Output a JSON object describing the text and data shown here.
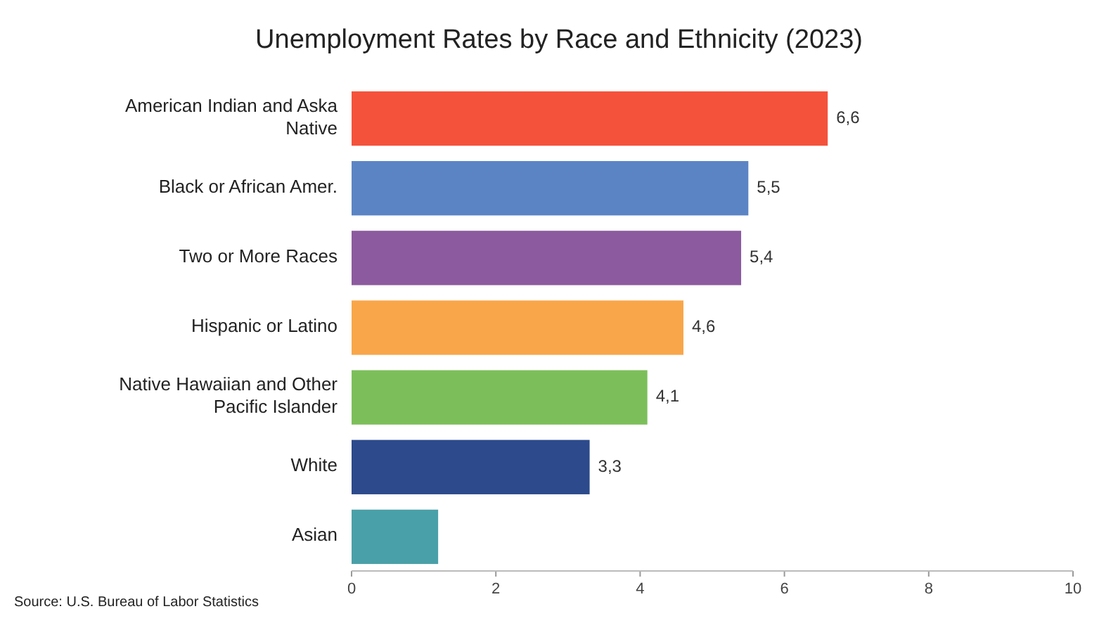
{
  "chart_data": {
    "type": "bar",
    "orientation": "horizontal",
    "title": "Unemployment Rates by Race and Ethnicity (2023)",
    "categories": [
      "American Indian and Aska Native",
      "Black or African Amer.",
      "Two or More Races",
      "Hispanic or Latino",
      "Native Hawaiian and Other Pacific Islander",
      "White",
      "Asian"
    ],
    "values": [
      6.6,
      5.5,
      5.4,
      4.6,
      4.1,
      3.3,
      1.2
    ],
    "colors": [
      "#f5523c",
      "#5b84c4",
      "#8c5a9e",
      "#f9a64a",
      "#7cbf5a",
      "#2c4a8c",
      "#4aa0a8"
    ],
    "value_labels": [
      "6,6",
      "5,5",
      "5,4",
      "4,6",
      "4,1",
      "3,3",
      null
    ],
    "xlim": [
      0,
      10
    ],
    "xticks": [
      0,
      2,
      4,
      6,
      8,
      10
    ],
    "annotations": [
      "Source: U.S. Bureau of Labor Statistics"
    ]
  }
}
